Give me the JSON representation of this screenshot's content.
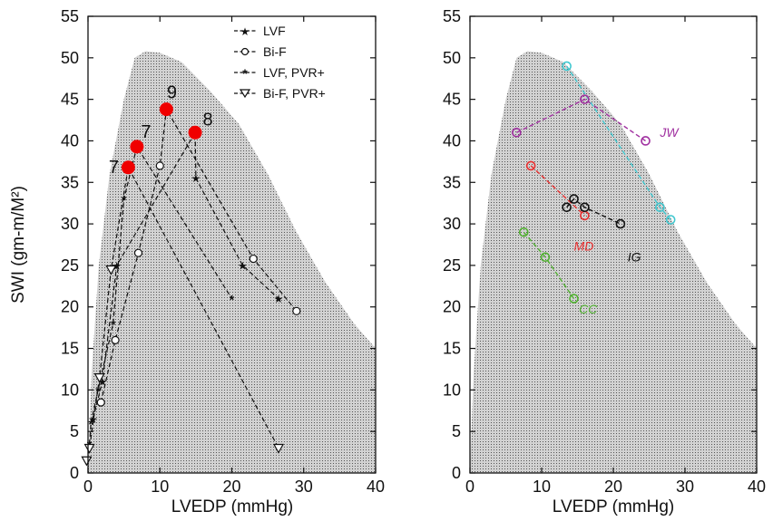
{
  "chart_data": [
    {
      "type": "line",
      "xlabel": "LVEDP (mmHg)",
      "ylabel": "SWI (gm-m/M²)",
      "xlim": [
        0,
        40
      ],
      "ylim": [
        0,
        55
      ],
      "xticks": [
        "0",
        "10",
        "20",
        "30",
        "40"
      ],
      "yticks": [
        "0",
        "5",
        "10",
        "15",
        "20",
        "25",
        "30",
        "35",
        "40",
        "45",
        "50",
        "55"
      ],
      "legend_position": "top-right",
      "legend": [
        "LVF",
        "Bi-F",
        "LVF, PVR+",
        "Bi-F, PVR+"
      ],
      "region": {
        "color": "#c8c8c8",
        "boundary": [
          [
            0,
            0
          ],
          [
            0.5,
            12
          ],
          [
            1.5,
            25
          ],
          [
            3,
            36
          ],
          [
            5,
            45
          ],
          [
            6.5,
            50
          ],
          [
            8,
            50.8
          ],
          [
            10,
            50.6
          ],
          [
            13,
            49.5
          ],
          [
            17,
            46
          ],
          [
            21,
            42
          ],
          [
            25,
            36
          ],
          [
            29,
            29
          ],
          [
            33,
            23
          ],
          [
            37,
            18
          ],
          [
            39,
            16
          ],
          [
            40,
            15
          ],
          [
            40,
            0
          ]
        ]
      },
      "series": [
        {
          "name": "LVF",
          "marker": "star",
          "points": [
            [
              0.7,
              6.5
            ],
            [
              2,
              11
            ],
            [
              4,
              25
            ],
            [
              15,
              35.5
            ],
            [
              21.5,
              25
            ],
            [
              26.5,
              21
            ]
          ],
          "peak": {
            "x": 14.9,
            "y": 41,
            "label": "8"
          }
        },
        {
          "name": "Bi-F",
          "marker": "circle",
          "points": [
            [
              1.8,
              8.5
            ],
            [
              3.8,
              16
            ],
            [
              7,
              26.5
            ],
            [
              10,
              37
            ],
            [
              23,
              25.8
            ],
            [
              29,
              19.5
            ]
          ],
          "peak": {
            "x": 10.9,
            "y": 43.8,
            "label": "9"
          }
        },
        {
          "name": "LVF, PVR+",
          "marker": "asterisk",
          "points": [
            [
              0.2,
              3.5
            ],
            [
              0.4,
              6
            ],
            [
              1.4,
              10
            ],
            [
              3.5,
              18
            ],
            [
              5,
              33
            ],
            [
              20,
              21
            ]
          ],
          "peak": {
            "x": 6.8,
            "y": 39.3,
            "label": "7"
          }
        },
        {
          "name": "Bi-F, PVR+",
          "marker": "triangle",
          "points": [
            [
              -0.2,
              1.5
            ],
            [
              0.2,
              3
            ],
            [
              1.6,
              11.5
            ],
            [
              3.2,
              24.5
            ],
            [
              26.5,
              3
            ]
          ],
          "peak": {
            "x": 5.6,
            "y": 36.8,
            "label": "7"
          }
        }
      ],
      "peak_color": "#f00000"
    },
    {
      "type": "line",
      "xlabel": "LVEDP (mmHg)",
      "ylabel": "",
      "xlim": [
        0,
        40
      ],
      "ylim": [
        0,
        55
      ],
      "xticks": [
        "0",
        "10",
        "20",
        "30",
        "40"
      ],
      "yticks": [
        "0",
        "5",
        "10",
        "15",
        "20",
        "25",
        "30",
        "35",
        "40",
        "45",
        "50",
        "55"
      ],
      "region": {
        "color": "#c8c8c8",
        "boundary": [
          [
            0,
            0
          ],
          [
            0.5,
            12
          ],
          [
            1.5,
            25
          ],
          [
            3,
            36
          ],
          [
            5,
            45
          ],
          [
            6.5,
            50
          ],
          [
            8,
            50.8
          ],
          [
            10,
            50.6
          ],
          [
            13,
            49.5
          ],
          [
            17,
            46
          ],
          [
            21,
            42
          ],
          [
            25,
            36
          ],
          [
            29,
            29
          ],
          [
            33,
            23
          ],
          [
            37,
            18
          ],
          [
            39,
            16
          ],
          [
            40,
            15
          ],
          [
            40,
            0
          ]
        ]
      },
      "series": [
        {
          "name": "JW",
          "color": "#a030a0",
          "points": [
            [
              6.5,
              41
            ],
            [
              16,
              45
            ],
            [
              24.5,
              40
            ]
          ],
          "label_at": [
            26.5,
            40.5
          ]
        },
        {
          "name": "",
          "color": "#40c8d0",
          "points": [
            [
              13.5,
              49
            ],
            [
              26.5,
              32
            ],
            [
              28,
              30.5
            ]
          ],
          "label_at": null
        },
        {
          "name": "MD",
          "color": "#e83030",
          "points": [
            [
              8.5,
              37
            ],
            [
              16,
              31
            ]
          ],
          "label_at": [
            14.5,
            26.8
          ]
        },
        {
          "name": "IG",
          "color": "#111111",
          "points": [
            [
              13.5,
              32
            ],
            [
              14.5,
              33
            ],
            [
              16,
              32
            ],
            [
              21,
              30
            ]
          ],
          "label_at": [
            22,
            25.5
          ]
        },
        {
          "name": "CC",
          "color": "#50b030",
          "points": [
            [
              7.5,
              29
            ],
            [
              10.5,
              26
            ],
            [
              14.5,
              21
            ]
          ],
          "label_at": [
            15.2,
            19.2
          ]
        }
      ]
    }
  ]
}
